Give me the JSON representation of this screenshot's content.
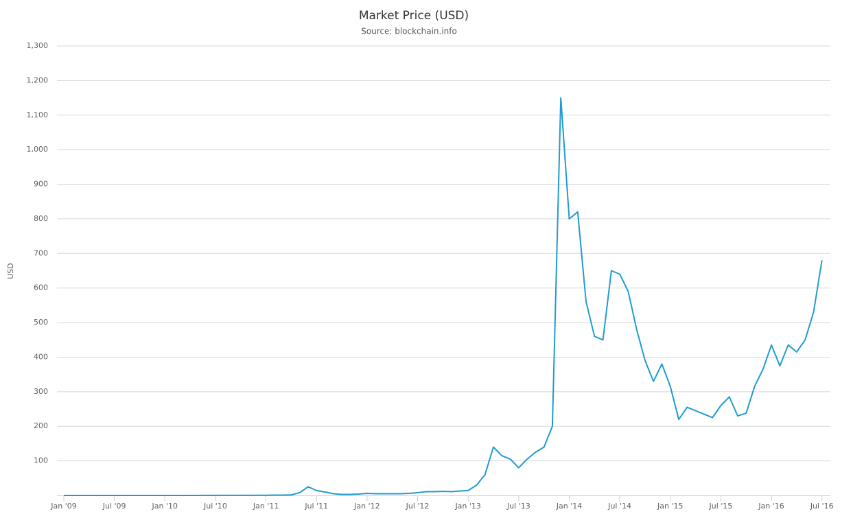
{
  "chart_data": {
    "type": "line",
    "title": "Market Price (USD)",
    "subtitle": "Source: blockchain.info",
    "y_label": "USD",
    "x": [
      "2009-01",
      "2009-04",
      "2009-07",
      "2009-10",
      "2010-01",
      "2010-04",
      "2010-07",
      "2010-10",
      "2011-01",
      "2011-02",
      "2011-03",
      "2011-04",
      "2011-05",
      "2011-06",
      "2011-07",
      "2011-08",
      "2011-09",
      "2011-10",
      "2011-11",
      "2011-12",
      "2012-01",
      "2012-02",
      "2012-03",
      "2012-04",
      "2012-05",
      "2012-06",
      "2012-07",
      "2012-08",
      "2012-09",
      "2012-10",
      "2012-11",
      "2012-12",
      "2013-01",
      "2013-02",
      "2013-03",
      "2013-04",
      "2013-05",
      "2013-06",
      "2013-07",
      "2013-08",
      "2013-09",
      "2013-10",
      "2013-11",
      "2013-12",
      "2014-01",
      "2014-02",
      "2014-03",
      "2014-04",
      "2014-05",
      "2014-06",
      "2014-07",
      "2014-08",
      "2014-09",
      "2014-10",
      "2014-11",
      "2014-12",
      "2015-01",
      "2015-02",
      "2015-03",
      "2015-04",
      "2015-05",
      "2015-06",
      "2015-07",
      "2015-08",
      "2015-09",
      "2015-10",
      "2015-11",
      "2015-12",
      "2016-01",
      "2016-02",
      "2016-03",
      "2016-04",
      "2016-05",
      "2016-06",
      "2016-07"
    ],
    "series": [
      {
        "name": "Market Price (USD)",
        "color": "#1f9bd1",
        "values": [
          0,
          0,
          0,
          0,
          0,
          0,
          0.1,
          0.2,
          0.5,
          1,
          0.9,
          1.5,
          8,
          25,
          14,
          10,
          5,
          3,
          3,
          4,
          6,
          5,
          5,
          5,
          5,
          6,
          8,
          11,
          11,
          12,
          11,
          13,
          14,
          30,
          60,
          140,
          115,
          105,
          80,
          105,
          125,
          140,
          200,
          1150,
          800,
          820,
          560,
          460,
          450,
          650,
          640,
          590,
          480,
          390,
          330,
          380,
          315,
          220,
          255,
          245,
          235,
          225,
          260,
          285,
          230,
          238,
          315,
          365,
          435,
          375,
          435,
          415,
          450,
          530,
          680
        ]
      }
    ],
    "xlim": [
      "2009-01",
      "2016-08"
    ],
    "xticks": [
      {
        "value": "2009-01",
        "label": "Jan '09"
      },
      {
        "value": "2009-07",
        "label": "Jul '09"
      },
      {
        "value": "2010-01",
        "label": "Jan '10"
      },
      {
        "value": "2010-07",
        "label": "Jul '10"
      },
      {
        "value": "2011-01",
        "label": "Jan '11"
      },
      {
        "value": "2011-07",
        "label": "Jul '11"
      },
      {
        "value": "2012-01",
        "label": "Jan '12"
      },
      {
        "value": "2012-07",
        "label": "Jul '12"
      },
      {
        "value": "2013-01",
        "label": "Jan '13"
      },
      {
        "value": "2013-07",
        "label": "Jul '13"
      },
      {
        "value": "2014-01",
        "label": "Jan '14"
      },
      {
        "value": "2014-07",
        "label": "Jul '14"
      },
      {
        "value": "2015-01",
        "label": "Jan '15"
      },
      {
        "value": "2015-07",
        "label": "Jul '15"
      },
      {
        "value": "2016-01",
        "label": "Jan '16"
      },
      {
        "value": "2016-07",
        "label": "Jul '16"
      }
    ],
    "ylim": [
      0,
      1300
    ],
    "yticks": [
      100,
      200,
      300,
      400,
      500,
      600,
      700,
      800,
      900,
      {
        "value": 1000,
        "label": "1,000"
      },
      {
        "value": 1100,
        "label": "1,100"
      },
      {
        "value": 1200,
        "label": "1,200"
      },
      {
        "value": 1300,
        "label": "1,300"
      }
    ],
    "grid": true
  }
}
